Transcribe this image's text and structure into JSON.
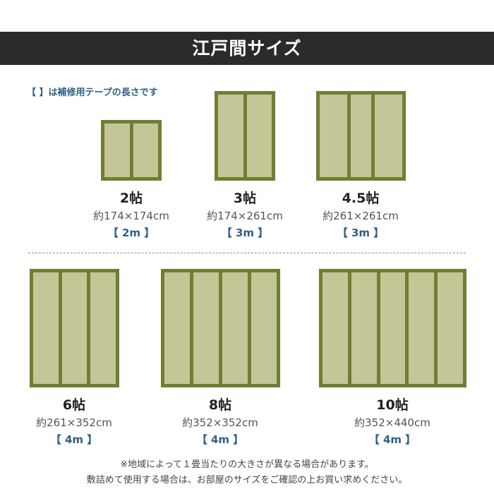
{
  "header": {
    "title": "江戸間サイズ"
  },
  "note": "【 】は補修用テープの長さです",
  "mats": [
    {
      "name": "2帖",
      "size": "約174×174cm",
      "tape": "【 2m 】"
    },
    {
      "name": "3帖",
      "size": "約174×261cm",
      "tape": "【 3m 】"
    },
    {
      "name": "4.5帖",
      "size": "約261×261cm",
      "tape": "【 3m 】"
    },
    {
      "name": "6帖",
      "size": "約261×352cm",
      "tape": "【 4m 】"
    },
    {
      "name": "8帖",
      "size": "約352×352cm",
      "tape": "【 4m 】"
    },
    {
      "name": "10帖",
      "size": "約352×440cm",
      "tape": "【 4m 】"
    }
  ],
  "footer": [
    "※地域によって１畳当たりの大きさが異なる場合があります。",
    "敷詰めて使用する場合は、お部屋のサイズをご確認の上お買い求めください。"
  ],
  "colors": {
    "frame": "#757b33",
    "tatami": "#c3c696",
    "accent": "#2f5f86",
    "header": "#2b2b2b"
  }
}
